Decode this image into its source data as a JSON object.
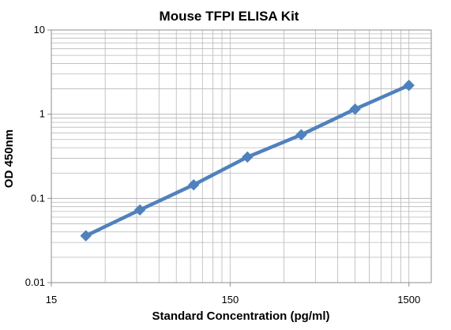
{
  "chart_data": {
    "type": "line",
    "title": "Mouse TFPI ELISA Kit",
    "xlabel": "Standard Concentration (pg/ml)",
    "ylabel": "OD 450nm",
    "x_scale": "log",
    "y_scale": "log",
    "xlim": [
      15,
      2000
    ],
    "ylim": [
      0.01,
      10
    ],
    "x_tick_labels": [
      "15",
      "150",
      "1500"
    ],
    "y_tick_labels": [
      "0.01",
      "0.1",
      "1",
      "10"
    ],
    "grid": true,
    "legend": "none",
    "marker": "diamond",
    "series": [
      {
        "x": [
          23.4,
          46.9,
          93.8,
          187.5,
          375,
          750,
          1500
        ],
        "y": [
          0.036,
          0.073,
          0.145,
          0.31,
          0.57,
          1.15,
          2.2
        ]
      }
    ],
    "colors": {
      "series": "#4f81bd",
      "grid": "#b8b8b8",
      "axis": "#8c8c8c"
    }
  }
}
